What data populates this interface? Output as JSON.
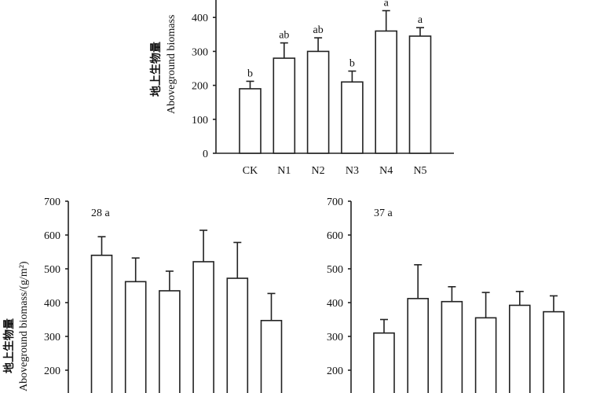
{
  "chart_data": [
    {
      "type": "bar",
      "id": "top",
      "title": "",
      "ylabel_cn": "地上生物量",
      "ylabel": "Aboveground biomass",
      "categories": [
        "CK",
        "N1",
        "N2",
        "N3",
        "N4",
        "N5"
      ],
      "values": [
        190,
        280,
        300,
        210,
        360,
        345
      ],
      "errors": [
        22,
        45,
        40,
        32,
        60,
        25
      ],
      "letters": [
        "b",
        "ab",
        "ab",
        "b",
        "a",
        "a"
      ],
      "yticks": [
        0,
        100,
        200,
        300,
        400
      ],
      "ylim": [
        0,
        450
      ]
    },
    {
      "type": "bar",
      "id": "bottom-left",
      "panel_label": "28 a",
      "ylabel_cn": "地上生物量",
      "ylabel": "Aboveground biomass/(g/m²)",
      "values": [
        540,
        462,
        435,
        521,
        472,
        347
      ],
      "errors": [
        55,
        70,
        58,
        93,
        106,
        80
      ],
      "yticks": [
        200,
        300,
        400,
        500,
        600,
        700
      ],
      "ylim": [
        0,
        700
      ]
    },
    {
      "type": "bar",
      "id": "bottom-right",
      "panel_label": "37 a",
      "values": [
        310,
        412,
        403,
        355,
        392,
        373
      ],
      "errors": [
        40,
        100,
        44,
        75,
        41,
        47
      ],
      "yticks": [
        200,
        300,
        400,
        500,
        600,
        700
      ],
      "ylim": [
        0,
        700
      ]
    }
  ]
}
